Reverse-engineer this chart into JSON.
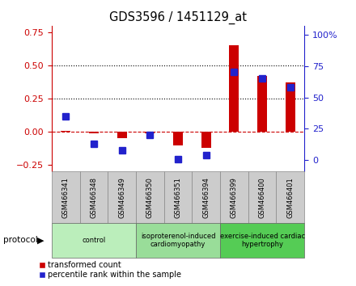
{
  "title": "GDS3596 / 1451129_at",
  "samples": [
    "GSM466341",
    "GSM466348",
    "GSM466349",
    "GSM466350",
    "GSM466351",
    "GSM466394",
    "GSM466399",
    "GSM466400",
    "GSM466401"
  ],
  "transformed_count": [
    0.01,
    -0.01,
    -0.05,
    -0.01,
    -0.1,
    -0.12,
    0.65,
    0.42,
    0.37
  ],
  "percentile_rank": [
    35,
    13,
    8,
    20,
    1,
    4,
    70,
    65,
    58
  ],
  "red_color": "#cc0000",
  "blue_color": "#2222cc",
  "left_ylim": [
    -0.3,
    0.8
  ],
  "right_ylim": [
    -9,
    107
  ],
  "left_yticks": [
    -0.25,
    0.0,
    0.25,
    0.5,
    0.75
  ],
  "right_yticks": [
    0,
    25,
    50,
    75,
    100
  ],
  "right_yticklabels": [
    "0",
    "25",
    "50",
    "75",
    "100%"
  ],
  "groups": [
    {
      "label": "control",
      "start": 0,
      "end": 3,
      "color": "#bbeebb"
    },
    {
      "label": "isoproterenol-induced\ncardiomyopathy",
      "start": 3,
      "end": 6,
      "color": "#99dd99"
    },
    {
      "label": "exercise-induced cardiac\nhypertrophy",
      "start": 6,
      "end": 9,
      "color": "#55cc55"
    }
  ],
  "dotted_yvals": [
    0.25,
    0.5
  ],
  "bar_width": 0.35,
  "marker_size": 6,
  "bg_color": "#ffffff",
  "plot_bg": "#f8f8f8"
}
